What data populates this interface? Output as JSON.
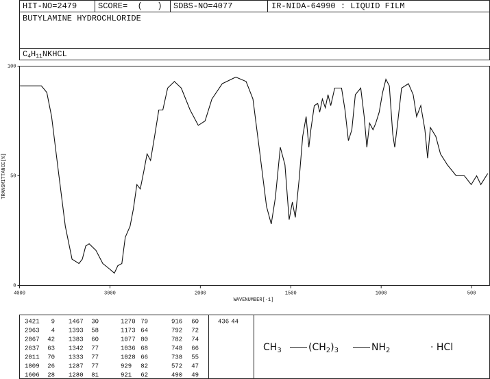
{
  "header": {
    "hit_no": "HIT-NO=2479",
    "score": "SCORE=  (   )",
    "sdbs_no": "SDBS-NO=4077",
    "method": "IR-NIDA-64990 : LIQUID FILM",
    "compound": "BUTYLAMINE HYDROCHLORIDE",
    "formula": [
      "C",
      "4",
      "H",
      "11",
      "NKHCL"
    ]
  },
  "chart_data": {
    "type": "line",
    "xlabel": "WAVENUMBER[-1]",
    "ylabel": "TRANSMITTANCE[%]",
    "xlim": [
      4000,
      400
    ],
    "xbreak": 2000,
    "ylim": [
      0,
      100
    ],
    "xticks": [
      4000,
      3000,
      2000,
      1500,
      1000,
      500
    ],
    "yticks": [
      0,
      50,
      100
    ],
    "color": "#111111",
    "x": [
      4000,
      3758,
      3698,
      3645,
      3570,
      3494,
      3419,
      3343,
      3306,
      3268,
      3230,
      3155,
      3079,
      3004,
      2951,
      2913,
      2868,
      2830,
      2777,
      2740,
      2702,
      2664,
      2626,
      2589,
      2551,
      2506,
      2460,
      2415,
      2362,
      2287,
      2211,
      2113,
      2023,
      1974,
      1936,
      1879,
      1804,
      1747,
      1709,
      1672,
      1634,
      1608,
      1585,
      1558,
      1532,
      1509,
      1491,
      1475,
      1453,
      1434,
      1415,
      1400,
      1389,
      1370,
      1351,
      1340,
      1325,
      1309,
      1294,
      1279,
      1257,
      1219,
      1200,
      1181,
      1162,
      1143,
      1113,
      1094,
      1079,
      1064,
      1045,
      1030,
      1011,
      992,
      974,
      955,
      936,
      925,
      909,
      887,
      849,
      823,
      804,
      781,
      758,
      743,
      728,
      698,
      672,
      634,
      585,
      540,
      502,
      472,
      449,
      411
    ],
    "values": [
      91,
      91,
      88,
      77,
      52,
      27,
      12,
      10,
      12,
      18,
      19,
      16,
      10,
      7.5,
      5.6,
      9,
      10,
      22,
      27,
      35,
      46,
      44,
      52,
      60,
      57,
      68,
      80,
      80,
      90,
      93,
      90,
      80,
      73,
      75,
      85,
      92,
      95,
      93,
      85,
      61,
      36,
      28,
      40,
      63,
      55,
      30,
      38,
      31,
      49,
      68,
      77,
      63,
      71,
      82,
      83,
      79,
      85,
      81,
      87,
      82,
      90,
      90,
      80,
      66,
      71,
      87,
      90,
      77,
      63,
      74,
      71,
      74,
      79,
      88,
      94,
      91,
      69,
      63,
      74,
      90,
      92,
      87,
      77,
      82,
      71,
      58,
      72,
      68,
      60,
      55,
      50,
      50,
      46,
      50,
      46,
      51
    ]
  },
  "peak_table": {
    "columns": [
      [
        [
          3421,
          9
        ],
        [
          2963,
          4
        ],
        [
          2867,
          42
        ],
        [
          2637,
          63
        ],
        [
          2011,
          70
        ],
        [
          1809,
          26
        ],
        [
          1606,
          28
        ]
      ],
      [
        [
          1467,
          30
        ],
        [
          1393,
          58
        ],
        [
          1383,
          60
        ],
        [
          1342,
          77
        ],
        [
          1333,
          77
        ],
        [
          1287,
          77
        ],
        [
          1280,
          81
        ]
      ],
      [
        [
          1270,
          79
        ],
        [
          1173,
          64
        ],
        [
          1077,
          80
        ],
        [
          1036,
          68
        ],
        [
          1028,
          66
        ],
        [
          929,
          82
        ],
        [
          921,
          62
        ]
      ],
      [
        [
          916,
          60
        ],
        [
          792,
          72
        ],
        [
          782,
          74
        ],
        [
          748,
          66
        ],
        [
          738,
          55
        ],
        [
          572,
          47
        ],
        [
          490,
          49
        ]
      ],
      [
        [
          436,
          44
        ]
      ]
    ]
  },
  "structure": {
    "methyl": [
      "CH",
      "3"
    ],
    "chain": [
      "(CH",
      "2",
      ")",
      "3"
    ],
    "amine": [
      "NH",
      "2"
    ],
    "salt": "· HCl"
  }
}
